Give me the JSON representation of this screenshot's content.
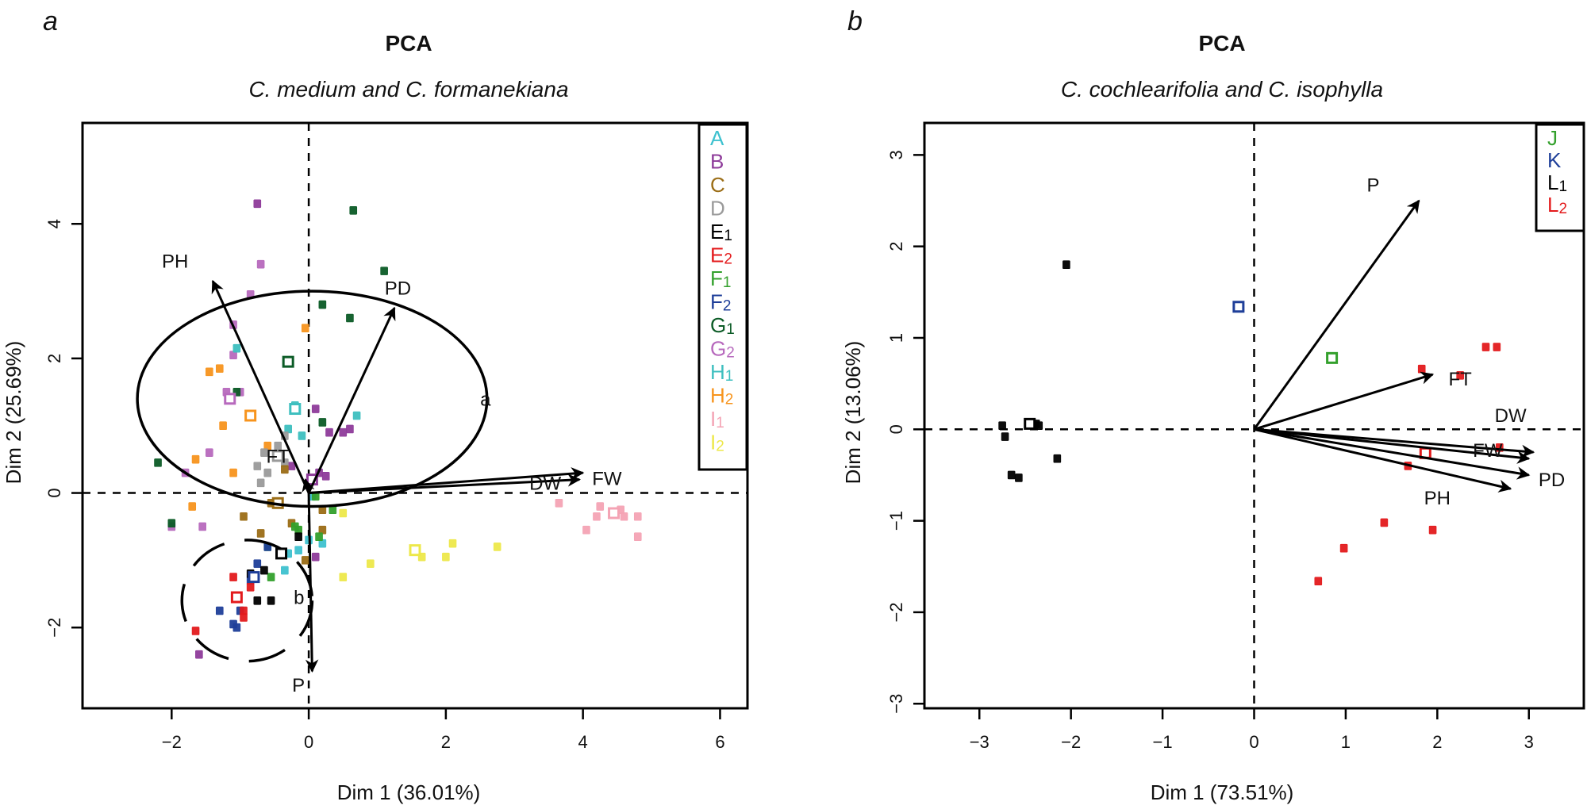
{
  "chart_data": [
    {
      "type": "scatter",
      "panel_letter": "a",
      "title": "PCA",
      "subtitle": "C. medium and C. formanekiana",
      "xlabel": "Dim 1 (36.01%)",
      "ylabel": "Dim 2 (25.69%)",
      "xlim": [
        -3.3,
        6.4
      ],
      "ylim": [
        -3.2,
        5.5
      ],
      "xticks": [
        -2,
        0,
        2,
        4,
        6
      ],
      "yticks": [
        -2,
        0,
        2,
        4
      ],
      "tick_labels_x": [
        "−2",
        "0",
        "2",
        "4",
        "6"
      ],
      "tick_labels_y": [
        "−2",
        "0",
        "2",
        "4"
      ],
      "reference_lines": {
        "x": 0,
        "y": 0,
        "style": "dashed"
      },
      "legend_position": "top-right",
      "legend": [
        {
          "base": "A",
          "sub": "",
          "color": "#3ec1cf"
        },
        {
          "base": "B",
          "sub": "",
          "color": "#8e3b9a"
        },
        {
          "base": "C",
          "sub": "",
          "color": "#9b6d16"
        },
        {
          "base": "D",
          "sub": "",
          "color": "#9a9a9a"
        },
        {
          "base": "E",
          "sub": "1",
          "color": "#000000"
        },
        {
          "base": "E",
          "sub": "2",
          "color": "#e31a1c"
        },
        {
          "base": "F",
          "sub": "1",
          "color": "#33a02c"
        },
        {
          "base": "F",
          "sub": "2",
          "color": "#1f3f99"
        },
        {
          "base": "G",
          "sub": "1",
          "color": "#0b5b26"
        },
        {
          "base": "G",
          "sub": "2",
          "color": "#b769bd"
        },
        {
          "base": "H",
          "sub": "1",
          "color": "#3dbfbf"
        },
        {
          "base": "H",
          "sub": "2",
          "color": "#f7941d"
        },
        {
          "base": "I",
          "sub": "1",
          "color": "#f4a3b4"
        },
        {
          "base": "I",
          "sub": "2",
          "color": "#ede84a"
        }
      ],
      "variables": [
        {
          "name": "PH",
          "x": -1.4,
          "y": 3.15
        },
        {
          "name": "PD",
          "x": 1.25,
          "y": 2.75
        },
        {
          "name": "FT",
          "x": -0.05,
          "y": 0.2
        },
        {
          "name": "DW",
          "x": 3.95,
          "y": 0.2
        },
        {
          "name": "FW",
          "x": 4.0,
          "y": 0.3
        },
        {
          "name": "P",
          "x": 0.05,
          "y": -2.65
        }
      ],
      "variable_label_positions": [
        {
          "name": "PH",
          "x": -1.95,
          "y": 3.35
        },
        {
          "name": "PD",
          "x": 1.3,
          "y": 2.95
        },
        {
          "name": "FT",
          "x": -0.45,
          "y": 0.45
        },
        {
          "name": "DW",
          "x": 3.45,
          "y": 0.05
        },
        {
          "name": "FW",
          "x": 4.35,
          "y": 0.12
        },
        {
          "name": "P",
          "x": -0.15,
          "y": -2.95
        }
      ],
      "ellipses": [
        {
          "label": "a",
          "cx": 0.05,
          "cy": 1.4,
          "rx": 2.55,
          "ry": 1.6,
          "style": "solid",
          "label_x": 2.5,
          "label_y": 1.3
        },
        {
          "label": "b",
          "cx": -0.9,
          "cy": -1.6,
          "rx": 0.95,
          "ry": 0.9,
          "style": "dashed",
          "label_x": -0.22,
          "label_y": -1.65
        }
      ],
      "points": [
        {
          "g": "B",
          "x": -0.75,
          "y": 4.3
        },
        {
          "g": "G1",
          "x": 0.65,
          "y": 4.2
        },
        {
          "g": "G1",
          "x": 1.1,
          "y": 3.3
        },
        {
          "g": "G1",
          "x": 0.2,
          "y": 2.8
        },
        {
          "g": "G1",
          "x": 0.6,
          "y": 2.6
        },
        {
          "g": "G2",
          "x": -0.7,
          "y": 3.4
        },
        {
          "g": "G2",
          "x": -0.85,
          "y": 2.95
        },
        {
          "g": "G2",
          "x": -1.1,
          "y": 2.5
        },
        {
          "g": "G2",
          "x": -1.1,
          "y": 2.05
        },
        {
          "g": "G2",
          "x": -1.2,
          "y": 1.5
        },
        {
          "g": "G2",
          "x": -1.0,
          "y": 1.5
        },
        {
          "g": "G2",
          "x": -1.45,
          "y": 0.6
        },
        {
          "g": "G2",
          "x": -1.8,
          "y": 0.3
        },
        {
          "g": "G2",
          "x": -2.0,
          "y": -0.5
        },
        {
          "g": "G2",
          "x": -1.55,
          "y": -0.5
        },
        {
          "g": "H1",
          "x": -1.05,
          "y": 2.15
        },
        {
          "g": "H1",
          "x": -0.2,
          "y": 1.3
        },
        {
          "g": "H1",
          "x": -0.3,
          "y": 0.95
        },
        {
          "g": "H1",
          "x": -0.1,
          "y": 0.85
        },
        {
          "g": "H1",
          "x": 0.7,
          "y": 1.15
        },
        {
          "g": "H2",
          "x": -0.05,
          "y": 2.45
        },
        {
          "g": "H2",
          "x": -1.45,
          "y": 1.8
        },
        {
          "g": "H2",
          "x": -1.3,
          "y": 1.85
        },
        {
          "g": "H2",
          "x": -1.25,
          "y": 1.0
        },
        {
          "g": "H2",
          "x": -0.6,
          "y": 0.7
        },
        {
          "g": "H2",
          "x": -1.1,
          "y": 0.3
        },
        {
          "g": "H2",
          "x": -1.65,
          "y": 0.5
        },
        {
          "g": "H2",
          "x": -1.7,
          "y": -0.2
        },
        {
          "g": "G1",
          "x": -1.05,
          "y": 1.5
        },
        {
          "g": "G1",
          "x": 0.2,
          "y": 1.05
        },
        {
          "g": "G1",
          "x": -2.2,
          "y": 0.45
        },
        {
          "g": "G1",
          "x": -2.0,
          "y": -0.45
        },
        {
          "g": "B",
          "x": 0.15,
          "y": 0.3
        },
        {
          "g": "B",
          "x": 0.3,
          "y": 0.9
        },
        {
          "g": "B",
          "x": 0.5,
          "y": 0.9
        },
        {
          "g": "B",
          "x": 0.25,
          "y": 0.25
        },
        {
          "g": "B",
          "x": 0.6,
          "y": 0.95
        },
        {
          "g": "B",
          "x": -0.25,
          "y": 0.4
        },
        {
          "g": "B",
          "x": 0.1,
          "y": 1.25
        },
        {
          "g": "B",
          "x": -1.6,
          "y": -2.4
        },
        {
          "g": "B",
          "x": 0.1,
          "y": -0.95
        },
        {
          "g": "D",
          "x": -0.35,
          "y": 0.85
        },
        {
          "g": "D",
          "x": -0.45,
          "y": 0.7
        },
        {
          "g": "D",
          "x": -0.65,
          "y": 0.6
        },
        {
          "g": "D",
          "x": -0.75,
          "y": 0.4
        },
        {
          "g": "D",
          "x": -0.7,
          "y": 0.15
        },
        {
          "g": "D",
          "x": -0.6,
          "y": 0.3
        },
        {
          "g": "D",
          "x": -0.35,
          "y": 0.45
        },
        {
          "g": "C",
          "x": -0.55,
          "y": -0.15
        },
        {
          "g": "C",
          "x": -0.35,
          "y": 0.35
        },
        {
          "g": "C",
          "x": -0.7,
          "y": -0.6
        },
        {
          "g": "C",
          "x": -0.25,
          "y": -0.45
        },
        {
          "g": "C",
          "x": 0.2,
          "y": -0.25
        },
        {
          "g": "C",
          "x": 0.2,
          "y": -0.55
        },
        {
          "g": "C",
          "x": -0.05,
          "y": -1.0
        },
        {
          "g": "C",
          "x": -0.95,
          "y": -0.35
        },
        {
          "g": "A",
          "x": 0.05,
          "y": -0.05
        },
        {
          "g": "A",
          "x": 0.0,
          "y": -0.7
        },
        {
          "g": "A",
          "x": -0.15,
          "y": -0.85
        },
        {
          "g": "A",
          "x": -0.3,
          "y": -0.9
        },
        {
          "g": "A",
          "x": -0.35,
          "y": -1.15
        },
        {
          "g": "A",
          "x": 0.2,
          "y": -0.75
        },
        {
          "g": "F1",
          "x": -0.2,
          "y": -0.5
        },
        {
          "g": "F1",
          "x": 0.1,
          "y": -0.05
        },
        {
          "g": "F1",
          "x": 0.35,
          "y": -0.25
        },
        {
          "g": "F1",
          "x": -0.15,
          "y": -0.55
        },
        {
          "g": "F1",
          "x": 0.15,
          "y": -0.65
        },
        {
          "g": "F1",
          "x": -0.6,
          "y": -0.8
        },
        {
          "g": "F1",
          "x": -0.55,
          "y": -1.25
        },
        {
          "g": "F2",
          "x": -0.6,
          "y": -0.8
        },
        {
          "g": "F2",
          "x": -0.75,
          "y": -1.05
        },
        {
          "g": "F2",
          "x": -0.85,
          "y": -1.3
        },
        {
          "g": "F2",
          "x": -1.0,
          "y": -1.75
        },
        {
          "g": "F2",
          "x": -1.05,
          "y": -2.0
        },
        {
          "g": "F2",
          "x": -1.1,
          "y": -1.95
        },
        {
          "g": "F2",
          "x": -1.3,
          "y": -1.75
        },
        {
          "g": "E1",
          "x": -0.85,
          "y": -1.2
        },
        {
          "g": "E1",
          "x": -0.65,
          "y": -1.15
        },
        {
          "g": "E1",
          "x": -0.55,
          "y": -1.6
        },
        {
          "g": "E1",
          "x": -0.75,
          "y": -1.6
        },
        {
          "g": "E1",
          "x": -0.15,
          "y": -0.65
        },
        {
          "g": "E2",
          "x": -1.1,
          "y": -1.25
        },
        {
          "g": "E2",
          "x": -0.85,
          "y": -1.4
        },
        {
          "g": "E2",
          "x": -0.95,
          "y": -1.75
        },
        {
          "g": "E2",
          "x": -0.95,
          "y": -1.85
        },
        {
          "g": "E2",
          "x": -1.65,
          "y": -2.05
        },
        {
          "g": "I2",
          "x": 0.5,
          "y": -0.3
        },
        {
          "g": "I2",
          "x": 0.9,
          "y": -1.05
        },
        {
          "g": "I2",
          "x": 0.5,
          "y": -1.25
        },
        {
          "g": "I2",
          "x": 1.65,
          "y": -0.95
        },
        {
          "g": "I2",
          "x": 2.1,
          "y": -0.75
        },
        {
          "g": "I2",
          "x": 2.0,
          "y": -0.95
        },
        {
          "g": "I2",
          "x": 2.75,
          "y": -0.8
        },
        {
          "g": "I1",
          "x": 3.65,
          "y": -0.15
        },
        {
          "g": "I1",
          "x": 4.25,
          "y": -0.2
        },
        {
          "g": "I1",
          "x": 4.2,
          "y": -0.35
        },
        {
          "g": "I1",
          "x": 4.55,
          "y": -0.25
        },
        {
          "g": "I1",
          "x": 4.8,
          "y": -0.35
        },
        {
          "g": "I1",
          "x": 4.05,
          "y": -0.55
        },
        {
          "g": "I1",
          "x": 4.8,
          "y": -0.65
        },
        {
          "g": "I1",
          "x": 4.6,
          "y": -0.35
        }
      ],
      "centroids": [
        {
          "g": "G1",
          "x": -0.3,
          "y": 1.95
        },
        {
          "g": "G2",
          "x": -1.15,
          "y": 1.4
        },
        {
          "g": "H2",
          "x": -0.85,
          "y": 1.15
        },
        {
          "g": "H1",
          "x": -0.2,
          "y": 1.25
        },
        {
          "g": "D",
          "x": -0.45,
          "y": 0.55
        },
        {
          "g": "B",
          "x": 0.05,
          "y": 0.2
        },
        {
          "g": "C",
          "x": -0.45,
          "y": -0.15
        },
        {
          "g": "E1",
          "x": -0.4,
          "y": -0.9
        },
        {
          "g": "F2",
          "x": -0.8,
          "y": -1.25
        },
        {
          "g": "E2",
          "x": -1.05,
          "y": -1.55
        },
        {
          "g": "I2",
          "x": 1.55,
          "y": -0.85
        },
        {
          "g": "I1",
          "x": 4.45,
          "y": -0.3
        }
      ]
    },
    {
      "type": "scatter",
      "panel_letter": "b",
      "title": "PCA",
      "subtitle": "C. cochlearifolia and C. isophylla",
      "xlabel": "Dim 1 (73.51%)",
      "ylabel": "Dim 2 (13.06%)",
      "xlim": [
        -3.6,
        3.6
      ],
      "ylim": [
        -3.05,
        3.35
      ],
      "xticks": [
        -3,
        -2,
        -1,
        0,
        1,
        2,
        3
      ],
      "yticks": [
        -3,
        -2,
        -1,
        0,
        1,
        2,
        3
      ],
      "tick_labels_x": [
        "−3",
        "−2",
        "−1",
        "0",
        "1",
        "2",
        "3"
      ],
      "tick_labels_y": [
        "−3",
        "−2",
        "−1",
        "0",
        "1",
        "2",
        "3"
      ],
      "reference_lines": {
        "x": 0,
        "y": 0,
        "style": "dashed"
      },
      "legend_position": "top-right",
      "legend": [
        {
          "base": "J",
          "sub": "",
          "color": "#33a02c"
        },
        {
          "base": "K",
          "sub": "",
          "color": "#1f3f99"
        },
        {
          "base": "L",
          "sub": "1",
          "color": "#000000"
        },
        {
          "base": "L",
          "sub": "2",
          "color": "#e31a1c"
        }
      ],
      "variables": [
        {
          "name": "P",
          "x": 1.8,
          "y": 2.5
        },
        {
          "name": "FT",
          "x": 1.95,
          "y": 0.6
        },
        {
          "name": "DW",
          "x": 3.05,
          "y": -0.25
        },
        {
          "name": "FW",
          "x": 3.0,
          "y": -0.32
        },
        {
          "name": "PD",
          "x": 3.0,
          "y": -0.5
        },
        {
          "name": "PH",
          "x": 2.8,
          "y": -0.65
        }
      ],
      "variable_label_positions": [
        {
          "name": "P",
          "x": 1.3,
          "y": 2.6
        },
        {
          "name": "FT",
          "x": 2.25,
          "y": 0.48
        },
        {
          "name": "DW",
          "x": 2.8,
          "y": 0.08
        },
        {
          "name": "FW",
          "x": 2.55,
          "y": -0.3
        },
        {
          "name": "PD",
          "x": 3.25,
          "y": -0.62
        },
        {
          "name": "PH",
          "x": 2.0,
          "y": -0.82
        }
      ],
      "points": [
        {
          "g": "L1",
          "x": -2.05,
          "y": 1.8
        },
        {
          "g": "L1",
          "x": -2.75,
          "y": 0.04
        },
        {
          "g": "L1",
          "x": -2.72,
          "y": -0.08
        },
        {
          "g": "L1",
          "x": -2.38,
          "y": 0.06
        },
        {
          "g": "L1",
          "x": -2.35,
          "y": 0.04
        },
        {
          "g": "L1",
          "x": -2.65,
          "y": -0.5
        },
        {
          "g": "L1",
          "x": -2.57,
          "y": -0.53
        },
        {
          "g": "L1",
          "x": -2.15,
          "y": -0.32
        },
        {
          "g": "K",
          "x": -0.17,
          "y": 1.34
        },
        {
          "g": "J",
          "x": 0.85,
          "y": 0.78
        },
        {
          "g": "L2",
          "x": 1.83,
          "y": 0.66
        },
        {
          "g": "L2",
          "x": 2.25,
          "y": 0.59
        },
        {
          "g": "L2",
          "x": 2.53,
          "y": 0.9
        },
        {
          "g": "L2",
          "x": 2.65,
          "y": 0.9
        },
        {
          "g": "L2",
          "x": 2.68,
          "y": -0.2
        },
        {
          "g": "L2",
          "x": 1.68,
          "y": -0.4
        },
        {
          "g": "L2",
          "x": 1.42,
          "y": -1.02
        },
        {
          "g": "L2",
          "x": 1.95,
          "y": -1.1
        },
        {
          "g": "L2",
          "x": 0.98,
          "y": -1.3
        },
        {
          "g": "L2",
          "x": 0.7,
          "y": -1.66
        }
      ],
      "centroids": [
        {
          "g": "L1",
          "x": -2.45,
          "y": 0.06
        },
        {
          "g": "K",
          "x": -0.17,
          "y": 1.34
        },
        {
          "g": "J",
          "x": 0.85,
          "y": 0.78
        },
        {
          "g": "L2",
          "x": 1.87,
          "y": -0.26
        }
      ]
    }
  ]
}
